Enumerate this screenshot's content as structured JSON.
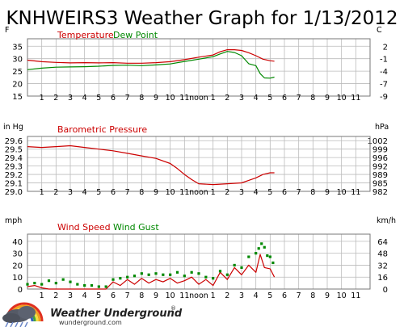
{
  "title": "KNHWEIRS3 Weather Graph for 1/13/2012",
  "x_ticks": [
    "1",
    "2",
    "3",
    "4",
    "5",
    "6",
    "7",
    "8",
    "9",
    "10",
    "11",
    "noon",
    "1",
    "2",
    "3",
    "4",
    "5",
    "6",
    "7",
    "8",
    "9",
    "10",
    "11"
  ],
  "colors": {
    "red": "#cc0000",
    "green": "#008800",
    "grid": "#bbbbbb",
    "frame": "#777777",
    "title": "#000000"
  },
  "logo": {
    "name": "Weather Underground",
    "mark": "®",
    "url": "wunderground.com"
  },
  "chart_data": [
    {
      "type": "line",
      "left_unit": "F",
      "right_unit": "C",
      "legend": [
        "Temperature",
        "Dew Point"
      ],
      "y_ticks_left": [
        35,
        30,
        25,
        20,
        15
      ],
      "y_ticks_right": [
        "2",
        "-1",
        "-4",
        "-7",
        "-9"
      ],
      "ylim": [
        15,
        38
      ],
      "xlim": [
        0,
        24
      ],
      "series": [
        {
          "name": "Temperature",
          "color": "#cc0000",
          "x": [
            0,
            1,
            2,
            3,
            4,
            5,
            6,
            7,
            8,
            9,
            10,
            11,
            12,
            13,
            13.5,
            14,
            14.5,
            15,
            15.5,
            16,
            16.5,
            17,
            17.3
          ],
          "y": [
            29.4,
            28.8,
            28.5,
            28.3,
            28.4,
            28.3,
            28.4,
            28.2,
            28.2,
            28.4,
            28.8,
            29.6,
            30.6,
            31.5,
            32.8,
            33.6,
            33.6,
            33.3,
            32.4,
            31.2,
            29.8,
            29.2,
            29.0
          ]
        },
        {
          "name": "Dew Point",
          "color": "#008800",
          "x": [
            0,
            1,
            2,
            3,
            4,
            5,
            6,
            7,
            8,
            9,
            10,
            11,
            12,
            13,
            13.5,
            14,
            14.5,
            15,
            15.5,
            16,
            16.3,
            16.6,
            17,
            17.3
          ],
          "y": [
            25.6,
            26.2,
            26.6,
            26.7,
            26.8,
            27.0,
            27.3,
            27.4,
            27.2,
            27.5,
            27.9,
            28.9,
            29.8,
            30.8,
            31.9,
            32.9,
            32.5,
            31.2,
            28.0,
            27.2,
            24.0,
            22.3,
            22.2,
            22.6
          ]
        }
      ]
    },
    {
      "type": "line",
      "left_unit": "in Hg",
      "right_unit": "hPa",
      "legend": [
        "Barometric Pressure"
      ],
      "y_ticks_left": [
        "29.6",
        "29.5",
        "29.4",
        "29.3",
        "29.2",
        "29.1",
        "29.0"
      ],
      "y_ticks_right": [
        "1002",
        "999",
        "996",
        "992",
        "989",
        "985",
        "982"
      ],
      "ylim": [
        29.0,
        29.65
      ],
      "xlim": [
        0,
        24
      ],
      "series": [
        {
          "name": "Barometric Pressure",
          "color": "#cc0000",
          "x": [
            0,
            1,
            2,
            3,
            4,
            5,
            6,
            7,
            8,
            9,
            10,
            10.5,
            11,
            11.5,
            12,
            13,
            14,
            15,
            15.5,
            16,
            16.5,
            17,
            17.3
          ],
          "y": [
            29.53,
            29.52,
            29.53,
            29.54,
            29.52,
            29.5,
            29.48,
            29.45,
            29.42,
            29.39,
            29.33,
            29.27,
            29.2,
            29.14,
            29.09,
            29.08,
            29.09,
            29.1,
            29.13,
            29.16,
            29.2,
            29.22,
            29.22
          ]
        }
      ]
    },
    {
      "type": "line",
      "left_unit": "mph",
      "right_unit": "km/h",
      "legend": [
        "Wind Speed",
        "Wind Gust"
      ],
      "y_ticks_left": [
        40,
        30,
        20,
        10,
        0
      ],
      "y_ticks_right": [
        "64",
        "48",
        "32",
        "16",
        "0"
      ],
      "ylim": [
        0,
        46
      ],
      "xlim": [
        0,
        24
      ],
      "series": [
        {
          "name": "Wind Speed",
          "color": "#cc0000",
          "x": [
            0,
            0.5,
            1,
            1.5,
            2,
            2.5,
            3,
            3.5,
            4,
            4.5,
            5,
            5.5,
            6,
            6.5,
            7,
            7.5,
            8,
            8.5,
            9,
            9.5,
            10,
            10.5,
            11,
            11.5,
            12,
            12.5,
            13,
            13.5,
            14,
            14.5,
            15,
            15.5,
            16,
            16.3,
            16.6,
            17,
            17.3
          ],
          "y": [
            2,
            3,
            1,
            0,
            0,
            0,
            0,
            0,
            0,
            0,
            0,
            0,
            6,
            3,
            8,
            4,
            9,
            5,
            8,
            6,
            9,
            5,
            7,
            10,
            4,
            8,
            3,
            14,
            8,
            18,
            12,
            20,
            14,
            29,
            18,
            17,
            10
          ]
        },
        {
          "name": "Wind Gust",
          "color": "#008800",
          "x": [
            0,
            0.5,
            1,
            1.5,
            2,
            2.5,
            3,
            3.5,
            4,
            4.5,
            5,
            5.5,
            6,
            6.5,
            7,
            7.5,
            8,
            8.5,
            9,
            9.5,
            10,
            10.5,
            11,
            11.5,
            12,
            12.5,
            13,
            13.5,
            14,
            14.5,
            15,
            15.5,
            16,
            16.2,
            16.4,
            16.6,
            16.8,
            17,
            17.2
          ],
          "y": [
            4,
            5,
            4,
            7,
            5,
            8,
            6,
            4,
            3,
            3,
            2,
            2,
            8,
            9,
            10,
            11,
            13,
            12,
            13,
            12,
            12,
            14,
            11,
            14,
            13,
            10,
            9,
            15,
            12,
            20,
            18,
            27,
            30,
            34,
            38,
            35,
            28,
            27,
            22
          ]
        }
      ]
    }
  ]
}
